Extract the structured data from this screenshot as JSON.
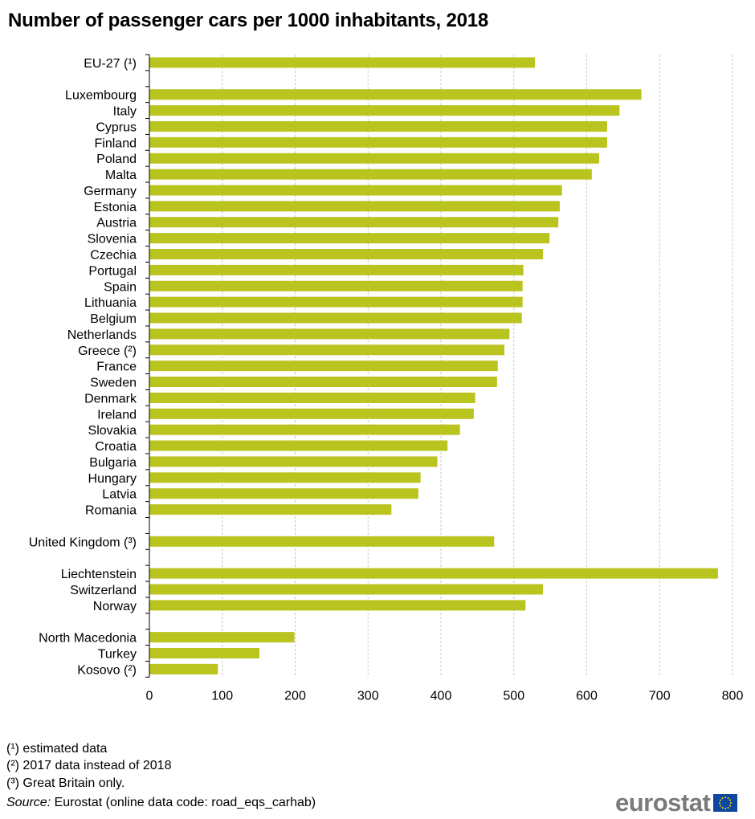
{
  "chart_data": {
    "type": "bar",
    "orientation": "horizontal",
    "title": "Number of passenger cars per 1000 inhabitants, 2018",
    "xlabel": "",
    "ylabel": "",
    "xlim": [
      0,
      800
    ],
    "xticks": [
      "0",
      "100",
      "200",
      "300",
      "400",
      "500",
      "600",
      "700",
      "800"
    ],
    "grid": "vertical dashed",
    "bar_color": "#b9c41e",
    "groups": [
      {
        "categories": [
          "EU-27 (¹)"
        ],
        "values": [
          529
        ]
      },
      {
        "categories": [
          "Luxembourg",
          "Italy",
          "Cyprus",
          "Finland",
          "Poland",
          "Malta",
          "Germany ",
          "Estonia",
          "Austria",
          "Slovenia",
          "Czechia",
          "Portugal",
          "Spain",
          "Lithuania",
          "Belgium",
          "Netherlands",
          "Greece (²)",
          "France",
          "Sweden",
          "Denmark",
          "Ireland",
          "Slovakia",
          "Croatia",
          "Bulgaria",
          "Hungary",
          "Latvia",
          "Romania"
        ],
        "values": [
          675,
          645,
          628,
          628,
          617,
          607,
          566,
          563,
          561,
          549,
          540,
          513,
          512,
          512,
          511,
          494,
          487,
          478,
          477,
          447,
          445,
          426,
          409,
          395,
          372,
          369,
          332
        ]
      },
      {
        "categories": [
          "United Kingdom (³)"
        ],
        "values": [
          473
        ]
      },
      {
        "categories": [
          "Liechtenstein",
          "Switzerland",
          "Norway"
        ],
        "values": [
          780,
          540,
          516
        ]
      },
      {
        "categories": [
          "North Macedonia",
          "Turkey",
          "Kosovo (²)"
        ],
        "values": [
          199,
          151,
          94
        ]
      }
    ]
  },
  "footnotes": [
    "(¹) estimated data",
    "(²)  2017 data instead of 2018",
    "(³) Great Britain only."
  ],
  "source": {
    "label": "Source:",
    "text": " Eurostat (online data code: road_eqs_carhab)"
  },
  "logo": {
    "text": "eurostat",
    "flag_color": "#0e47a1",
    "star_color": "#ffdd00"
  }
}
